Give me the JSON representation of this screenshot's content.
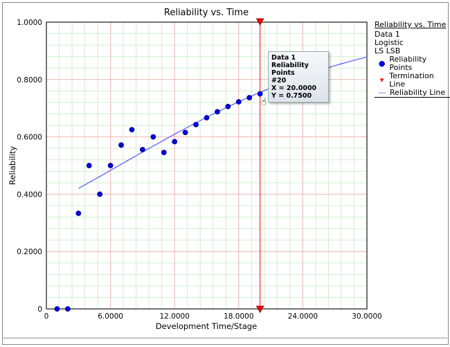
{
  "chart_data": {
    "type": "scatter",
    "title": "Reliability vs. Time",
    "xlabel": "Development Time/Stage",
    "ylabel": "Reliability",
    "xlim": [
      0,
      30
    ],
    "ylim": [
      0,
      1
    ],
    "xticks": [
      "0",
      "6.0000",
      "12.0000",
      "18.0000",
      "24.0000",
      "30.0000"
    ],
    "xtick_values": [
      0,
      6,
      12,
      18,
      24,
      30
    ],
    "yticks": [
      "0",
      "0.2000",
      "0.4000",
      "0.6000",
      "0.8000",
      "1.0000"
    ],
    "ytick_values": [
      0,
      0.2,
      0.4,
      0.6,
      0.8,
      1.0
    ],
    "grid": true,
    "points": {
      "name": "Reliability Points",
      "x": [
        1,
        2,
        3,
        4,
        5,
        6,
        7,
        8,
        9,
        10,
        11,
        12,
        13,
        14,
        15,
        16,
        17,
        18,
        19,
        20
      ],
      "y": [
        0,
        0,
        0.3333,
        0.5,
        0.4,
        0.5,
        0.5714,
        0.625,
        0.5556,
        0.6,
        0.5455,
        0.5833,
        0.6154,
        0.6429,
        0.6667,
        0.6875,
        0.7059,
        0.7222,
        0.7368,
        0.75
      ]
    },
    "line": {
      "name": "Reliability Line",
      "model": "logistic",
      "ln_b": 0.5786,
      "a": 0.0852,
      "x_start": 3,
      "x_end": 30
    },
    "termination": {
      "name": "Termination Line",
      "x": 20
    },
    "legend": {
      "title": "Reliability vs. Time",
      "lines": [
        "Data 1",
        "Logistic",
        "LS LSB"
      ],
      "entries": [
        "Reliability Points",
        "Termination Line",
        "Reliability Line"
      ],
      "placement": "right"
    },
    "tooltip": [
      "Data 1",
      "Reliability Points",
      "#20",
      "X = 20.0000",
      "Y = 0.7500"
    ],
    "colors": {
      "points": "#0000e0",
      "line": "#5555ff",
      "termination": "#ff0000",
      "major_grid": "#f4b8b8",
      "minor_grid": "#cdf0cd"
    }
  }
}
